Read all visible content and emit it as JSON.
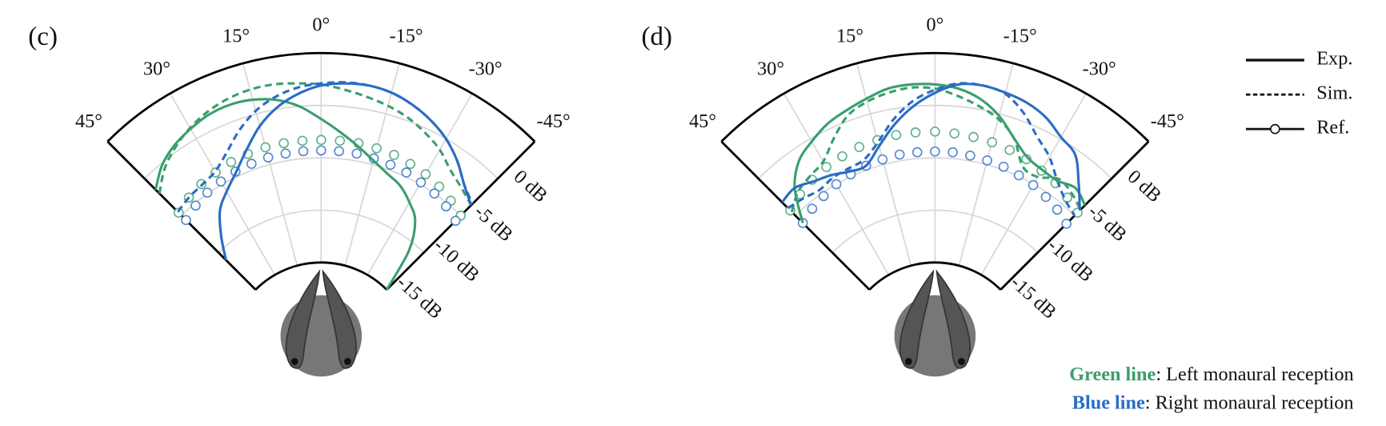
{
  "chart_data": [
    {
      "type": "polar",
      "panel_label": "(c)",
      "theta": [
        45,
        40,
        35,
        30,
        25,
        20,
        15,
        10,
        5,
        0,
        -5,
        -10,
        -15,
        -20,
        -25,
        -30,
        -35,
        -40,
        -45
      ],
      "thetalim": [
        45,
        -45
      ],
      "thetaticks": [
        {
          "value": 45,
          "label": "45°"
        },
        {
          "value": 30,
          "label": "30°"
        },
        {
          "value": 15,
          "label": "15°"
        },
        {
          "value": 0,
          "label": "0°"
        },
        {
          "value": -15,
          "label": "-15°"
        },
        {
          "value": -30,
          "label": "-30°"
        },
        {
          "value": -45,
          "label": "-45°"
        }
      ],
      "rlim": [
        -15,
        5
      ],
      "rticks": [
        {
          "value": 0,
          "label": "0 dB"
        },
        {
          "value": -5,
          "label": "-5 dB"
        },
        {
          "value": -10,
          "label": "-10 dB"
        },
        {
          "value": -15,
          "label": "-15 dB"
        }
      ],
      "grid": true,
      "series": [
        {
          "color": "#3a9e6e",
          "style": "markers",
          "values": [
            -4.6,
            -4.2,
            -3.9,
            -3.7,
            -3.5,
            -3.4,
            -3.3,
            -3.3,
            -3.3,
            -3.3,
            -3.3,
            -3.3,
            -3.4,
            -3.5,
            -3.7,
            -3.9,
            -4.2,
            -4.6,
            -5.0
          ]
        },
        {
          "color": "#2a6cc4",
          "style": "markers",
          "values": [
            -5.6,
            -5.2,
            -4.9,
            -4.7,
            -4.5,
            -4.4,
            -4.3,
            -4.3,
            -4.3,
            -4.3,
            -4.3,
            -4.3,
            -4.4,
            -4.5,
            -4.6,
            -4.8,
            -5.0,
            -5.3,
            -5.7
          ]
        },
        {
          "color": "#3a9e6e",
          "style": "dashed",
          "values": [
            -2.0,
            -0.6,
            0.4,
            1.2,
            1.8,
            2.2,
            2.4,
            2.4,
            2.2,
            2.0,
            1.6,
            1.2,
            0.8,
            0.3,
            -0.4,
            -1.2,
            -2.3,
            -3.0,
            -3.6
          ]
        },
        {
          "color": "#2a6cc4",
          "style": "dashed",
          "values": [
            -4.5,
            -4.2,
            -4.0,
            -3.6,
            -2.5,
            -1.0,
            0.3,
            1.2,
            1.8,
            2.1,
            2.3,
            2.3,
            2.1,
            1.6,
            0.9,
            0.0,
            -1.2,
            -2.6,
            -3.4
          ]
        },
        {
          "color": "#3a9e6e",
          "style": "solid",
          "values": [
            -1.5,
            -0.2,
            0.6,
            1.1,
            1.5,
            1.6,
            1.4,
            0.9,
            0.0,
            -1.3,
            -2.5,
            -3.6,
            -4.6,
            -5.4,
            -6.0,
            -7.0,
            -8.2,
            -10.8,
            -15
          ]
        },
        {
          "color": "#2a6cc4",
          "style": "solid",
          "values": [
            -11,
            -9.0,
            -7.0,
            -5.8,
            -4.6,
            -3.0,
            -1.2,
            0.2,
            1.2,
            1.9,
            2.2,
            2.3,
            2.1,
            1.6,
            0.9,
            0.0,
            -1.2,
            -2.6,
            -3.6
          ]
        }
      ]
    },
    {
      "type": "polar",
      "panel_label": "(d)",
      "theta": [
        45,
        40,
        35,
        30,
        25,
        20,
        15,
        10,
        5,
        0,
        -5,
        -10,
        -15,
        -20,
        -25,
        -30,
        -35,
        -40,
        -45
      ],
      "thetalim": [
        45,
        -45
      ],
      "thetaticks": [
        {
          "value": 45,
          "label": "45°"
        },
        {
          "value": 30,
          "label": "30°"
        },
        {
          "value": 15,
          "label": "15°"
        },
        {
          "value": 0,
          "label": "0°"
        },
        {
          "value": -15,
          "label": "-15°"
        },
        {
          "value": -30,
          "label": "-30°"
        },
        {
          "value": -45,
          "label": "-45°"
        }
      ],
      "rlim": [
        -15,
        5
      ],
      "rticks": [
        {
          "value": 0,
          "label": "0 dB"
        },
        {
          "value": -5,
          "label": "-5 dB"
        },
        {
          "value": -10,
          "label": "-10 dB"
        },
        {
          "value": -15,
          "label": "-15 dB"
        }
      ],
      "grid": true,
      "series": [
        {
          "color": "#3a9e6e",
          "style": "markers",
          "values": [
            -4.3,
            -3.8,
            -3.4,
            -3.1,
            -2.9,
            -2.7,
            -2.6,
            -2.5,
            -2.5,
            -2.5,
            -2.6,
            -2.7,
            -2.8,
            -3.0,
            -3.2,
            -3.5,
            -3.8,
            -4.2,
            -4.6
          ]
        },
        {
          "color": "#2a6cc4",
          "style": "markers",
          "values": [
            -6.0,
            -5.6,
            -5.3,
            -5.0,
            -4.8,
            -4.6,
            -4.5,
            -4.4,
            -4.4,
            -4.4,
            -4.4,
            -4.5,
            -4.6,
            -4.7,
            -4.9,
            -5.1,
            -5.4,
            -5.7,
            -6.1
          ]
        },
        {
          "color": "#3a9e6e",
          "style": "dashed",
          "values": [
            -4.5,
            -3.5,
            -3.0,
            -2.5,
            -1.0,
            0.5,
            1.2,
            1.6,
            1.8,
            1.6,
            1.0,
            0.3,
            -0.5,
            -1.8,
            -4.0,
            -4.2,
            -3.3,
            -3.6,
            -4.2
          ]
        },
        {
          "color": "#2a6cc4",
          "style": "dashed",
          "values": [
            -4.0,
            -4.3,
            -4.6,
            -4.3,
            -4.2,
            -4.0,
            -2.8,
            -1.0,
            0.5,
            1.5,
            2.2,
            2.3,
            2.0,
            0.8,
            -0.8,
            -2.0,
            -3.5,
            -4.5,
            -5.0
          ]
        },
        {
          "color": "#3a9e6e",
          "style": "solid",
          "values": [
            -6.0,
            -3.0,
            -1.2,
            -0.3,
            0.5,
            1.0,
            1.5,
            2.0,
            2.1,
            2.0,
            1.7,
            1.0,
            -0.2,
            -1.8,
            -3.0,
            -3.4,
            -3.5,
            -3.0,
            -3.6
          ]
        },
        {
          "color": "#2a6cc4",
          "style": "solid",
          "values": [
            -3.2,
            -3.0,
            -3.6,
            -4.0,
            -4.5,
            -4.6,
            -3.2,
            -1.5,
            0.0,
            1.2,
            2.1,
            2.3,
            2.1,
            1.8,
            1.2,
            0.2,
            -0.5,
            -2.5,
            -4.3
          ]
        }
      ]
    }
  ],
  "legend": [
    {
      "label": "Exp.",
      "style": "solid"
    },
    {
      "label": "Sim.",
      "style": "dashed"
    },
    {
      "label": "Ref.",
      "style": "markers"
    }
  ],
  "notes": [
    {
      "label": "Green line",
      "text": ": Left monaural reception",
      "color": "#3a9e6e"
    },
    {
      "label": "Blue line",
      "text": ": Right monaural reception",
      "color": "#2a6cc4"
    }
  ]
}
